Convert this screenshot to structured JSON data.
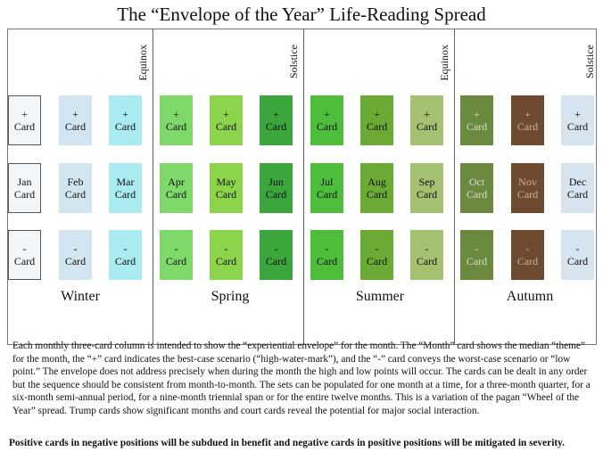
{
  "title": "The “Envelope of the Year” Life-Reading Spread",
  "markers": [
    "Equinox",
    "Solstice",
    "Equinox",
    "Solstice"
  ],
  "seasons": [
    "Winter",
    "Spring",
    "Summer",
    "Autumn"
  ],
  "card_word": "Card",
  "plus_label": "+",
  "minus_label": "-",
  "months": [
    {
      "name": "Jan",
      "color": "#f3f6f8",
      "text_color": "#111111"
    },
    {
      "name": "Feb",
      "color": "#d3e5f0",
      "text_color": "#111111"
    },
    {
      "name": "Mar",
      "color": "#a9ebf1",
      "text_color": "#111111"
    },
    {
      "name": "Apr",
      "color": "#7fd86a",
      "text_color": "#111111"
    },
    {
      "name": "May",
      "color": "#8bd44b",
      "text_color": "#111111"
    },
    {
      "name": "Jun",
      "color": "#3ba63c",
      "text_color": "#111111"
    },
    {
      "name": "Jul",
      "color": "#4dbd3b",
      "text_color": "#111111"
    },
    {
      "name": "Aug",
      "color": "#6aaa35",
      "text_color": "#111111"
    },
    {
      "name": "Sep",
      "color": "#a4c071",
      "text_color": "#111111"
    },
    {
      "name": "Oct",
      "color": "#6b8a3f",
      "text_color": "#d8dcc8"
    },
    {
      "name": "Nov",
      "color": "#6f4a2f",
      "text_color": "#c8b0a0"
    },
    {
      "name": "Dec",
      "color": "#d5e4ee",
      "text_color": "#111111"
    }
  ],
  "description": "Each monthly three-card column is intended to show the “experiential envelope” for the month. The “Month” card shows the median “theme” for the month, the “+” card indicates the best-case scenario (“high-water-mark”), and the “-” card conveys the worst-case scenario or “low point.” The envelope does not address precisely when during the month the high and low points will occur. The cards can be dealt in any order but the sequence should be consistent from month-to-month. The sets can be populated for one month at a time, for a three-month quarter, for a six-month semi-annual period, for a nine-month triennial span or for the entire twelve months. This is a variation of the pagan “Wheel of the Year” spread. Trump cards show significant months and court cards reveal the potential for major social interaction.",
  "note": "Positive cards in negative positions will be subdued in benefit and negative cards in positive positions will be mitigated in severity."
}
